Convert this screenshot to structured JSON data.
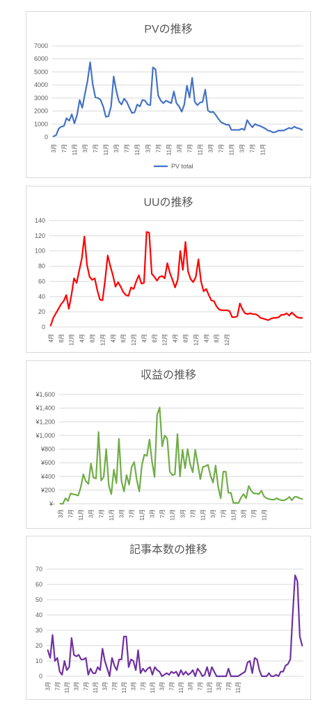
{
  "chart_data": [
    {
      "type": "line",
      "title": "PVの推移",
      "color": "#4472c4",
      "ylim": [
        0,
        7000
      ],
      "yticks": [
        "0",
        "1000",
        "2000",
        "3000",
        "4000",
        "5000",
        "6000",
        "7000"
      ],
      "ytick_values": [
        0,
        1000,
        2000,
        3000,
        4000,
        5000,
        6000,
        7000
      ],
      "x_labels": [
        "3月",
        "7月",
        "11月",
        "3月",
        "7月",
        "11月",
        "3月",
        "7月",
        "11月",
        "3月",
        "7月",
        "11月",
        "3月",
        "7月",
        "11月",
        "3月",
        "7月",
        "11月",
        "3月",
        "7月",
        "11月"
      ],
      "x_label_step": 4,
      "legend": "top-hidden-bottom",
      "series": [
        {
          "name": "PV total",
          "values": [
            50,
            150,
            650,
            800,
            850,
            1450,
            1250,
            1750,
            1050,
            1700,
            2850,
            2250,
            3300,
            4300,
            5750,
            4050,
            3050,
            3000,
            2850,
            2350,
            1550,
            1600,
            2350,
            4650,
            3550,
            2750,
            2500,
            2950,
            2700,
            2250,
            1850,
            1900,
            2500,
            2350,
            2850,
            2800,
            2500,
            2450,
            5350,
            5200,
            3200,
            2800,
            2600,
            2800,
            2700,
            2600,
            3500,
            2600,
            2350,
            1950,
            2500,
            3950,
            3050,
            4550,
            2700,
            2450,
            2650,
            2700,
            3650,
            2050,
            1900,
            1950,
            1700,
            1400,
            1150,
            1050,
            950,
            950,
            550,
            550,
            550,
            550,
            650,
            550,
            1300,
            1000,
            750,
            1000,
            900,
            850,
            750,
            650,
            500,
            450,
            350,
            400,
            500,
            500,
            500,
            600,
            700,
            650,
            800,
            700,
            650,
            550
          ]
        }
      ]
    },
    {
      "type": "line",
      "title": "UUの推移",
      "color": "#ff0000",
      "ylim": [
        0,
        140
      ],
      "yticks": [
        "0",
        "20",
        "40",
        "60",
        "80",
        "100",
        "120",
        "140"
      ],
      "ytick_values": [
        0,
        20,
        40,
        60,
        80,
        100,
        120,
        140
      ],
      "x_labels": [
        "4月",
        "8月",
        "12月",
        "4月",
        "8月",
        "12月",
        "4月",
        "8月",
        "12月",
        "4月",
        "8月",
        "12月",
        "4月",
        "8月",
        "12月",
        "4月",
        "8月",
        "12月"
      ],
      "x_label_step": 4,
      "series": [
        {
          "name": "",
          "values": [
            2,
            12,
            18,
            24,
            30,
            34,
            42,
            24,
            42,
            64,
            58,
            74,
            90,
            119,
            82,
            66,
            62,
            64,
            48,
            36,
            35,
            62,
            94,
            80,
            68,
            53,
            59,
            53,
            46,
            42,
            41,
            52,
            50,
            60,
            68,
            57,
            58,
            125,
            124,
            70,
            66,
            61,
            66,
            67,
            64,
            84,
            71,
            62,
            52,
            62,
            100,
            75,
            112,
            73,
            63,
            59,
            66,
            89,
            60,
            47,
            50,
            42,
            35,
            34,
            27,
            23,
            22,
            22,
            22,
            21,
            13,
            13,
            14,
            31,
            23,
            18,
            17,
            18,
            17,
            17,
            15,
            12,
            11,
            10,
            9,
            11,
            12,
            12,
            13,
            16,
            16,
            18,
            15,
            19,
            16,
            13,
            12,
            12
          ]
        }
      ]
    },
    {
      "type": "line",
      "title": "収益の推移",
      "color": "#70ad47",
      "ylim": [
        0,
        1600
      ],
      "yticks": [
        "¥-",
        "¥200",
        "¥400",
        "¥600",
        "¥800",
        "¥1,000",
        "¥1,200",
        "¥1,400",
        "¥1,600"
      ],
      "ytick_values": [
        0,
        200,
        400,
        600,
        800,
        1000,
        1200,
        1400,
        1600
      ],
      "x_labels": [
        "3月",
        "7月",
        "11月",
        "3月",
        "7月",
        "11月",
        "3月",
        "7月",
        "11月",
        "3月",
        "7月",
        "11月",
        "3月",
        "7月",
        "11月",
        "3月",
        "7月",
        "11月",
        "3月",
        "7月",
        "11月"
      ],
      "x_label_step": 4,
      "series": [
        {
          "name": "",
          "values": [
            0,
            0,
            80,
            40,
            150,
            140,
            130,
            120,
            240,
            430,
            330,
            290,
            590,
            380,
            370,
            1050,
            340,
            390,
            800,
            270,
            140,
            500,
            300,
            950,
            330,
            180,
            420,
            280,
            540,
            610,
            350,
            180,
            560,
            720,
            700,
            940,
            620,
            390,
            1300,
            1410,
            840,
            1000,
            950,
            470,
            420,
            430,
            1020,
            400,
            790,
            520,
            800,
            580,
            460,
            790,
            580,
            360,
            540,
            550,
            570,
            410,
            310,
            560,
            250,
            80,
            470,
            470,
            160,
            160,
            10,
            10,
            10,
            90,
            140,
            80,
            260,
            190,
            150,
            150,
            140,
            190,
            110,
            80,
            70,
            60,
            60,
            80,
            60,
            50,
            50,
            70,
            100,
            50,
            100,
            100,
            80,
            70
          ]
        }
      ]
    },
    {
      "type": "line",
      "title": "記事本数の推移",
      "color": "#7030a0",
      "ylim": [
        0,
        70
      ],
      "yticks": [
        "0",
        "10",
        "20",
        "30",
        "40",
        "50",
        "60",
        "70"
      ],
      "ytick_values": [
        0,
        10,
        20,
        30,
        40,
        50,
        60,
        70
      ],
      "x_labels": [
        "3月",
        "7月",
        "11月",
        "3月",
        "7月",
        "11月",
        "3月",
        "7月",
        "11月",
        "3月",
        "7月",
        "11月",
        "3月",
        "7月",
        "11月",
        "3月",
        "7月",
        "11月",
        "3月",
        "7月",
        "11月"
      ],
      "x_label_step": 4,
      "series": [
        {
          "name": "",
          "values": [
            17,
            12,
            27,
            10,
            12,
            3,
            1,
            10,
            4,
            6,
            25,
            14,
            13,
            14,
            11,
            11,
            12,
            1,
            5,
            2,
            2,
            6,
            4,
            18,
            10,
            5,
            0,
            12,
            7,
            4,
            11,
            11,
            26,
            26,
            6,
            11,
            10,
            4,
            17,
            2,
            5,
            3,
            5,
            6,
            1,
            6,
            4,
            3,
            0,
            1,
            2,
            1,
            3,
            2,
            3,
            0,
            4,
            1,
            3,
            1,
            2,
            4,
            0,
            5,
            3,
            0,
            1,
            6,
            0,
            6,
            3,
            0,
            0,
            0,
            0,
            0,
            5,
            0,
            0,
            0,
            0,
            1,
            2,
            3,
            9,
            10,
            2,
            12,
            11,
            4,
            0,
            0,
            0,
            2,
            0,
            0,
            1,
            0,
            3,
            3,
            7,
            8,
            11,
            40,
            66,
            62,
            26,
            20
          ]
        }
      ]
    }
  ]
}
